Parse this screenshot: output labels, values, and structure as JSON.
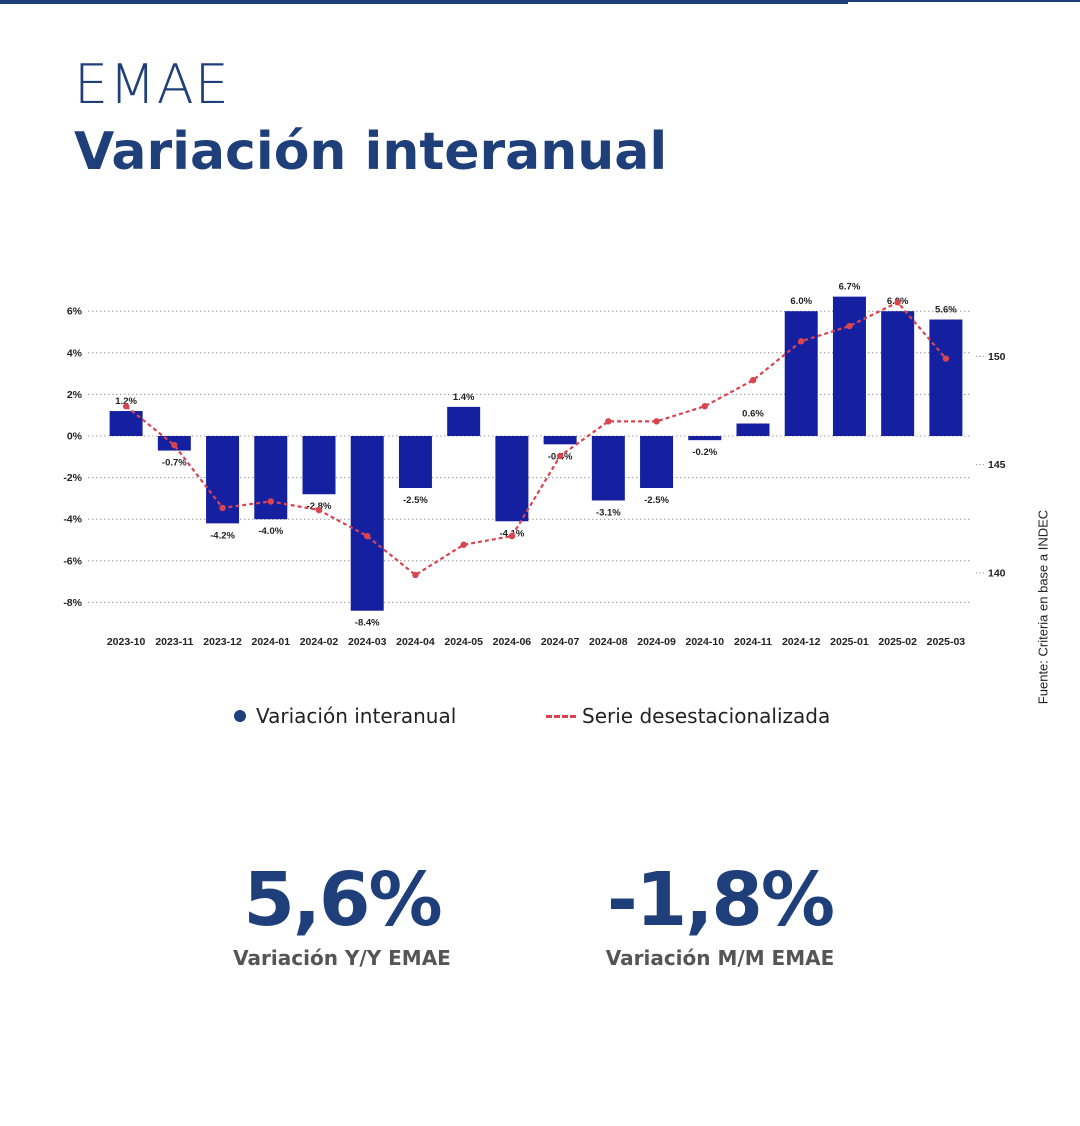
{
  "header": {
    "title": "EMAE",
    "subtitle": "Variación interanual"
  },
  "source": "Fuente: Criteria en base a INDEC",
  "legend": {
    "bars": "Variación interanual",
    "line": "Serie desestacionalizada"
  },
  "kpis": [
    {
      "value": "5,6%",
      "label": "Variación Y/Y EMAE"
    },
    {
      "value": "-1,8%",
      "label": "Variación M/M EMAE"
    }
  ],
  "colors": {
    "primary": "#1f3f7a",
    "bar": "#1520a0",
    "line": "#d94451",
    "text": "#222222",
    "kpi_label": "#555555"
  },
  "chart_data": {
    "type": "bar",
    "categories": [
      "2023-10",
      "2023-11",
      "2023-12",
      "2024-01",
      "2024-02",
      "2024-03",
      "2024-04",
      "2024-05",
      "2024-06",
      "2024-07",
      "2024-08",
      "2024-09",
      "2024-10",
      "2024-11",
      "2024-12",
      "2025-01",
      "2025-02",
      "2025-03"
    ],
    "series": [
      {
        "name": "Variación interanual",
        "type": "bar",
        "axis": "left",
        "values": [
          1.2,
          -0.7,
          -4.2,
          -4.0,
          -2.8,
          -8.4,
          -2.5,
          1.4,
          -4.1,
          -0.4,
          -3.1,
          -2.5,
          -0.2,
          0.6,
          6.0,
          6.7,
          6.0,
          5.6
        ],
        "labels": [
          "1.2%",
          "-0.7%",
          "-4.2%",
          "-4.0%",
          "-2.8%",
          "-8.4%",
          "-2.5%",
          "1.4%",
          "-4.1%",
          "-0.4%",
          "-3.1%",
          "-2.5%",
          "-0.2%",
          "0.6%",
          "6.0%",
          "6.7%",
          "6.0%",
          "5.6%"
        ]
      },
      {
        "name": "Serie desestacionalizada",
        "type": "line",
        "axis": "right",
        "style": "dashed",
        "values": [
          147.7,
          145.9,
          143.0,
          143.3,
          142.9,
          141.7,
          139.9,
          141.3,
          141.7,
          145.4,
          147.0,
          147.0,
          147.7,
          148.9,
          150.7,
          151.4,
          152.5,
          149.9
        ]
      }
    ],
    "y_left": {
      "ylim": [
        -9,
        6.5
      ],
      "ticks": [
        6,
        4,
        2,
        0,
        -2,
        -4,
        -6,
        -8
      ],
      "tick_labels": [
        "6%",
        "4%",
        "2%",
        "0%",
        "-2%",
        "-4%",
        "-6%",
        "-8%"
      ]
    },
    "y_right": {
      "ylim": [
        138.7,
        153.3
      ],
      "ticks": [
        150,
        145,
        140
      ],
      "tick_labels": [
        "150",
        "145",
        "140"
      ]
    },
    "grid": true,
    "legend_position": "bottom"
  }
}
